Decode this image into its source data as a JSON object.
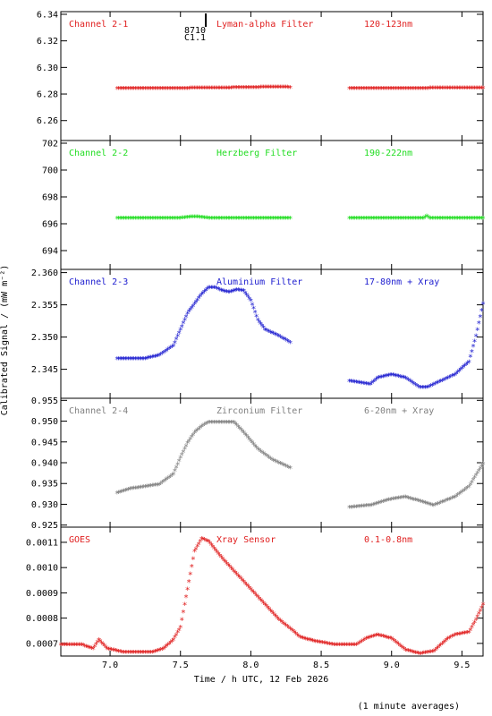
{
  "footer": {
    "xlabel": "Time / h UTC, 12 Feb 2026",
    "averaging_note": "(1 minute averages)"
  },
  "ylabel": "Calibrated Signal / (mW m⁻²)",
  "xaxis": {
    "range": [
      6.65,
      9.65
    ],
    "ticks": [
      7.0,
      7.5,
      8.0,
      8.5,
      9.0,
      9.5
    ],
    "tick_labels": [
      "7.0",
      "7.5",
      "8.0",
      "8.5",
      "9.0",
      "9.5"
    ]
  },
  "flare_marker": {
    "time": 7.68,
    "label_top": "8710",
    "label_bottom": "C1.1"
  },
  "chart_data": [
    {
      "type": "scatter",
      "channel": "Channel 2-1",
      "filter": "Lyman-alpha Filter",
      "band": "120-123nm",
      "color": "#e02020",
      "ylim": [
        6.245,
        6.342
      ],
      "yticks": [
        6.26,
        6.28,
        6.3,
        6.32,
        6.34
      ],
      "ytick_labels": [
        "6.26",
        "6.28",
        "6.30",
        "6.32",
        "6.34"
      ],
      "segments": [
        {
          "x": [
            7.05,
            7.5,
            7.8,
            8.05,
            8.15,
            8.28
          ],
          "y": [
            6.2835,
            6.2835,
            6.2838,
            6.2842,
            6.2845,
            6.2842
          ]
        },
        {
          "x": [
            8.7,
            9.0,
            9.3,
            9.65
          ],
          "y": [
            6.2835,
            6.2833,
            6.2836,
            6.2838
          ]
        }
      ]
    },
    {
      "type": "scatter",
      "channel": "Channel 2-2",
      "filter": "Herzberg Filter",
      "band": "190-222nm",
      "color": "#22dd22",
      "ylim": [
        692.6,
        702.2
      ],
      "yticks": [
        694,
        696,
        698,
        700,
        702
      ],
      "ytick_labels": [
        "694",
        "696",
        "698",
        "700",
        "702"
      ],
      "segments": [
        {
          "x": [
            7.05,
            7.5,
            7.6,
            7.7,
            8.0,
            8.28
          ],
          "y": [
            696.35,
            696.35,
            696.45,
            696.35,
            696.35,
            696.35
          ]
        },
        {
          "x": [
            8.7,
            9.0,
            9.23,
            9.25,
            9.27,
            9.65
          ],
          "y": [
            696.35,
            696.35,
            696.35,
            696.5,
            696.35,
            696.35
          ]
        }
      ]
    },
    {
      "type": "scatter",
      "channel": "Channel 2-3",
      "filter": "Aluminium Filter",
      "band": "17-80nm + Xray",
      "color": "#2020d0",
      "ylim": [
        2.3405,
        2.3605
      ],
      "yticks": [
        2.345,
        2.35,
        2.355,
        2.36
      ],
      "ytick_labels": [
        "2.345",
        "2.350",
        "2.355",
        "2.360"
      ],
      "segments": [
        {
          "x": [
            7.05,
            7.15,
            7.25,
            7.35,
            7.45,
            7.5,
            7.55,
            7.6,
            7.65,
            7.7,
            7.75,
            7.8,
            7.85,
            7.9,
            7.95,
            8.0,
            8.05,
            8.1,
            8.2,
            8.28
          ],
          "y": [
            2.3465,
            2.3465,
            2.3465,
            2.347,
            2.3485,
            2.351,
            2.3535,
            2.355,
            2.3565,
            2.3575,
            2.3575,
            2.357,
            2.3568,
            2.3572,
            2.357,
            2.3555,
            2.3525,
            2.351,
            2.35,
            2.349
          ]
        },
        {
          "x": [
            8.7,
            8.85,
            8.9,
            9.0,
            9.1,
            9.2,
            9.25,
            9.35,
            9.45,
            9.55,
            9.6,
            9.65
          ],
          "y": [
            2.343,
            2.3425,
            2.3435,
            2.344,
            2.3435,
            2.342,
            2.342,
            2.343,
            2.344,
            2.346,
            2.35,
            2.355
          ]
        }
      ]
    },
    {
      "type": "scatter",
      "channel": "Channel 2-4",
      "filter": "Zirconium Filter",
      "band": "6-20nm + Xray",
      "color": "#808080",
      "ylim": [
        0.9245,
        0.9555
      ],
      "yticks": [
        0.925,
        0.93,
        0.935,
        0.94,
        0.945,
        0.95,
        0.955
      ],
      "ytick_labels": [
        "0.925",
        "0.930",
        "0.935",
        "0.940",
        "0.945",
        "0.950",
        "0.955"
      ],
      "segments": [
        {
          "x": [
            7.05,
            7.15,
            7.25,
            7.35,
            7.45,
            7.5,
            7.55,
            7.6,
            7.65,
            7.7,
            7.8,
            7.88,
            7.95,
            8.05,
            8.15,
            8.28
          ],
          "y": [
            0.9325,
            0.9335,
            0.934,
            0.9345,
            0.937,
            0.941,
            0.9445,
            0.947,
            0.9485,
            0.9495,
            0.9495,
            0.9495,
            0.947,
            0.943,
            0.9405,
            0.9385
          ]
        },
        {
          "x": [
            8.7,
            8.85,
            9.0,
            9.1,
            9.2,
            9.3,
            9.45,
            9.55,
            9.65
          ],
          "y": [
            0.929,
            0.9295,
            0.931,
            0.9315,
            0.9305,
            0.9295,
            0.9315,
            0.934,
            0.9395
          ]
        }
      ]
    },
    {
      "type": "scatter",
      "channel": "GOES",
      "filter": "Xray Sensor",
      "band": "0.1-0.8nm",
      "color": "#e02020",
      "ylim": [
        0.00065,
        0.00116
      ],
      "yticks": [
        0.0007,
        0.0008,
        0.0009,
        0.001,
        0.0011
      ],
      "ytick_labels": [
        "0.0007",
        "0.0008",
        "0.0009",
        "0.0010",
        "0.0011"
      ],
      "segments": [
        {
          "x": [
            6.65,
            6.8,
            6.88,
            6.92,
            6.98,
            7.1,
            7.3,
            7.38,
            7.45,
            7.5,
            7.55,
            7.6,
            7.65,
            7.7,
            7.8,
            7.9,
            8.0,
            8.1,
            8.2,
            8.3,
            8.35,
            8.45,
            8.6,
            8.75,
            8.82,
            8.9,
            9.0,
            9.1,
            9.2,
            9.3,
            9.4,
            9.45,
            9.55,
            9.6,
            9.65
          ],
          "y": [
            0.00069,
            0.00069,
            0.000675,
            0.00071,
            0.000675,
            0.00066,
            0.00066,
            0.000675,
            0.00071,
            0.00076,
            0.00091,
            0.00106,
            0.00111,
            0.0011,
            0.00103,
            0.00097,
            0.00091,
            0.00085,
            0.00079,
            0.000745,
            0.00072,
            0.000705,
            0.00069,
            0.00069,
            0.000715,
            0.00073,
            0.000715,
            0.00067,
            0.000655,
            0.000665,
            0.000715,
            0.00073,
            0.00074,
            0.00079,
            0.00085
          ]
        }
      ]
    }
  ]
}
